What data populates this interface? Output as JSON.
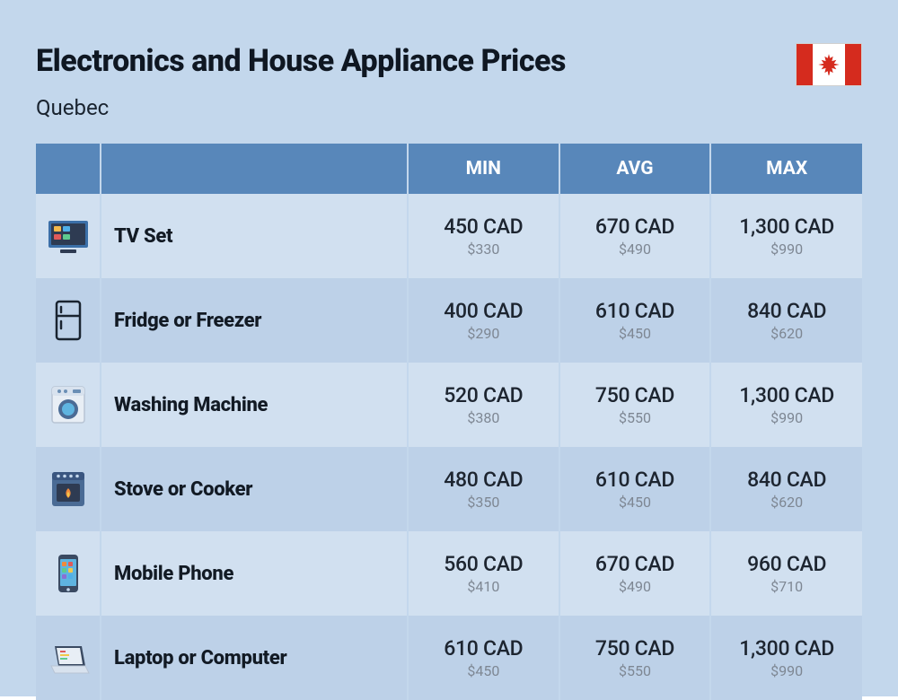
{
  "title": "Electronics and House Appliance Prices",
  "subtitle": "Quebec",
  "flag": {
    "band_color": "#d52b1e",
    "bg_color": "#ffffff"
  },
  "table": {
    "header_bg": "#5887ba",
    "header_text_color": "#ffffff",
    "row_odd_bg": "#d1e0f0",
    "row_even_bg": "#bdd1e8",
    "columns": [
      "MIN",
      "AVG",
      "MAX"
    ],
    "rows": [
      {
        "icon": "tv",
        "name": "TV Set",
        "min": {
          "cad": "450 CAD",
          "usd": "$330"
        },
        "avg": {
          "cad": "670 CAD",
          "usd": "$490"
        },
        "max": {
          "cad": "1,300 CAD",
          "usd": "$990"
        }
      },
      {
        "icon": "fridge",
        "name": "Fridge or Freezer",
        "min": {
          "cad": "400 CAD",
          "usd": "$290"
        },
        "avg": {
          "cad": "610 CAD",
          "usd": "$450"
        },
        "max": {
          "cad": "840 CAD",
          "usd": "$620"
        }
      },
      {
        "icon": "washer",
        "name": "Washing Machine",
        "min": {
          "cad": "520 CAD",
          "usd": "$380"
        },
        "avg": {
          "cad": "750 CAD",
          "usd": "$550"
        },
        "max": {
          "cad": "1,300 CAD",
          "usd": "$990"
        }
      },
      {
        "icon": "stove",
        "name": "Stove or Cooker",
        "min": {
          "cad": "480 CAD",
          "usd": "$350"
        },
        "avg": {
          "cad": "610 CAD",
          "usd": "$450"
        },
        "max": {
          "cad": "840 CAD",
          "usd": "$620"
        }
      },
      {
        "icon": "phone",
        "name": "Mobile Phone",
        "min": {
          "cad": "560 CAD",
          "usd": "$410"
        },
        "avg": {
          "cad": "670 CAD",
          "usd": "$490"
        },
        "max": {
          "cad": "960 CAD",
          "usd": "$710"
        }
      },
      {
        "icon": "laptop",
        "name": "Laptop or Computer",
        "min": {
          "cad": "610 CAD",
          "usd": "$450"
        },
        "avg": {
          "cad": "750 CAD",
          "usd": "$550"
        },
        "max": {
          "cad": "1,300 CAD",
          "usd": "$990"
        }
      }
    ]
  },
  "style": {
    "page_bg": "#c3d7ec",
    "title_color": "#0f1722",
    "title_fontsize": 34,
    "subtitle_fontsize": 24,
    "name_fontsize": 22,
    "price_main_fontsize": 23,
    "price_sub_fontsize": 16,
    "price_main_color": "#1d2530",
    "price_sub_color": "#7e8793"
  }
}
